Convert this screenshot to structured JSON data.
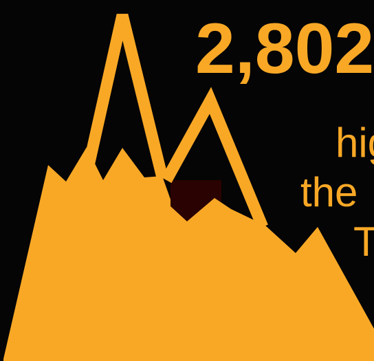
{
  "headline": "2,802",
  "lines": [
    "hig",
    "the",
    "T"
  ]
}
